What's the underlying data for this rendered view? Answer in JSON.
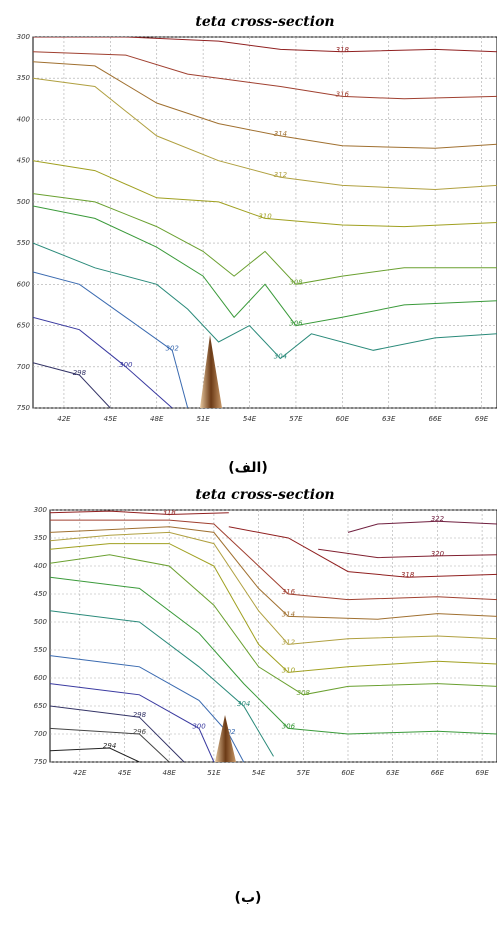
{
  "chart_data": [
    {
      "type": "contour",
      "title": "teta cross-section",
      "caption": "(الف)",
      "grid": true,
      "xlim": [
        40,
        70
      ],
      "ylim": [
        750,
        300
      ],
      "xticks": [
        {
          "value": 42,
          "label": "42E"
        },
        {
          "value": 45,
          "label": "45E"
        },
        {
          "value": 48,
          "label": "48E"
        },
        {
          "value": 51,
          "label": "51E"
        },
        {
          "value": 54,
          "label": "54E"
        },
        {
          "value": 57,
          "label": "57E"
        },
        {
          "value": 60,
          "label": "60E"
        },
        {
          "value": 63,
          "label": "63E"
        },
        {
          "value": 66,
          "label": "66E"
        },
        {
          "value": 69,
          "label": "69E"
        }
      ],
      "yticks": [
        300,
        350,
        400,
        450,
        500,
        550,
        600,
        650,
        700,
        750
      ],
      "contours": [
        {
          "level": 318,
          "color": "#902020",
          "x": [
            40,
            46,
            52,
            56,
            60,
            66,
            70
          ],
          "y": [
            300,
            300,
            305,
            315,
            318,
            315,
            318
          ]
        },
        {
          "level": 316,
          "color": "#a04030",
          "x": [
            40,
            46,
            50,
            56,
            60,
            64,
            70
          ],
          "y": [
            318,
            322,
            345,
            360,
            372,
            375,
            372
          ]
        },
        {
          "level": 314,
          "color": "#a07030",
          "x": [
            40,
            44,
            48,
            52,
            56,
            60,
            66,
            70
          ],
          "y": [
            330,
            335,
            380,
            405,
            420,
            432,
            435,
            430
          ]
        },
        {
          "level": 312,
          "color": "#b0a040",
          "x": [
            40,
            44,
            48,
            52,
            56,
            60,
            66,
            70
          ],
          "y": [
            350,
            360,
            420,
            450,
            470,
            480,
            485,
            480
          ]
        },
        {
          "level": 310,
          "color": "#a0a020",
          "x": [
            40,
            44,
            48,
            52,
            55,
            60,
            64,
            70
          ],
          "y": [
            450,
            462,
            495,
            500,
            520,
            528,
            530,
            525
          ]
        },
        {
          "level": 308,
          "color": "#6aa030",
          "x": [
            40,
            44,
            48,
            51,
            53,
            55,
            57,
            60,
            64,
            70
          ],
          "y": [
            490,
            500,
            530,
            560,
            590,
            560,
            600,
            590,
            580,
            580
          ]
        },
        {
          "level": 306,
          "color": "#3a9a3a",
          "x": [
            40,
            44,
            48,
            51,
            53,
            55,
            57,
            60,
            64,
            70
          ],
          "y": [
            505,
            520,
            555,
            590,
            640,
            600,
            650,
            640,
            625,
            620
          ]
        },
        {
          "level": 304,
          "color": "#2a8a7a",
          "x": [
            40,
            44,
            48,
            50,
            52,
            54,
            56,
            58,
            62,
            66,
            70
          ],
          "y": [
            550,
            580,
            600,
            630,
            670,
            650,
            690,
            660,
            680,
            665,
            660
          ]
        },
        {
          "level": 302,
          "color": "#3a6ab0",
          "x": [
            40,
            43,
            46,
            49,
            50
          ],
          "y": [
            585,
            600,
            640,
            680,
            750
          ]
        },
        {
          "level": 300,
          "color": "#3a3aa0",
          "x": [
            40,
            43,
            46,
            49
          ],
          "y": [
            640,
            655,
            700,
            750
          ]
        },
        {
          "level": 298,
          "color": "#333366",
          "x": [
            40,
            43,
            45
          ],
          "y": [
            695,
            710,
            750
          ]
        }
      ]
    },
    {
      "type": "contour",
      "title": "teta cross-section",
      "caption": "(ب)",
      "grid": true,
      "xlim": [
        40,
        70
      ],
      "ylim": [
        750,
        300
      ],
      "xticks": [
        {
          "value": 42,
          "label": "42E"
        },
        {
          "value": 45,
          "label": "45E"
        },
        {
          "value": 48,
          "label": "48E"
        },
        {
          "value": 51,
          "label": "51E"
        },
        {
          "value": 54,
          "label": "54E"
        },
        {
          "value": 57,
          "label": "57E"
        },
        {
          "value": 60,
          "label": "60E"
        },
        {
          "value": 63,
          "label": "63E"
        },
        {
          "value": 66,
          "label": "66E"
        },
        {
          "value": 69,
          "label": "69E"
        }
      ],
      "yticks": [
        300,
        350,
        400,
        450,
        500,
        550,
        600,
        650,
        700,
        750
      ],
      "contours": [
        {
          "level": 318,
          "color": "#902020",
          "x": [
            40,
            44,
            48,
            52
          ],
          "y": [
            305,
            302,
            308,
            305
          ]
        },
        {
          "level": 322,
          "color": "#702040",
          "x": [
            60,
            62,
            66,
            70
          ],
          "y": [
            340,
            325,
            320,
            325
          ]
        },
        {
          "level": 320,
          "color": "#802030",
          "x": [
            58,
            62,
            66,
            70
          ],
          "y": [
            370,
            385,
            382,
            380
          ]
        },
        {
          "level": 318,
          "color": "#902020",
          "x": [
            52,
            56,
            60,
            64,
            70
          ],
          "y": [
            330,
            350,
            410,
            420,
            415
          ]
        },
        {
          "level": 316,
          "color": "#a04030",
          "x": [
            40,
            44,
            48,
            51,
            54,
            56,
            60,
            66,
            70
          ],
          "y": [
            318,
            318,
            318,
            325,
            400,
            450,
            460,
            455,
            460
          ]
        },
        {
          "level": 314,
          "color": "#a07030",
          "x": [
            40,
            44,
            48,
            51,
            54,
            56,
            62,
            66,
            70
          ],
          "y": [
            340,
            335,
            330,
            340,
            440,
            490,
            495,
            485,
            490
          ]
        },
        {
          "level": 312,
          "color": "#b0a040",
          "x": [
            40,
            44,
            48,
            51,
            54,
            56,
            60,
            66,
            70
          ],
          "y": [
            355,
            345,
            340,
            360,
            480,
            540,
            530,
            525,
            530
          ]
        },
        {
          "level": 310,
          "color": "#a0a020",
          "x": [
            40,
            44,
            48,
            51,
            54,
            56,
            60,
            66,
            70
          ],
          "y": [
            370,
            360,
            360,
            400,
            540,
            590,
            580,
            570,
            575
          ]
        },
        {
          "level": 308,
          "color": "#6aa030",
          "x": [
            40,
            44,
            48,
            51,
            54,
            57,
            60,
            66,
            70
          ],
          "y": [
            395,
            380,
            400,
            470,
            580,
            630,
            615,
            610,
            615
          ]
        },
        {
          "level": 306,
          "color": "#3a9a3a",
          "x": [
            40,
            46,
            50,
            53,
            56,
            60,
            66,
            70
          ],
          "y": [
            420,
            440,
            520,
            610,
            690,
            700,
            695,
            700
          ]
        },
        {
          "level": 304,
          "color": "#2a8a7a",
          "x": [
            40,
            46,
            50,
            53,
            55
          ],
          "y": [
            480,
            500,
            580,
            650,
            740
          ]
        },
        {
          "level": 302,
          "color": "#3a6ab0",
          "x": [
            40,
            46,
            50,
            52,
            53
          ],
          "y": [
            560,
            580,
            640,
            700,
            750
          ]
        },
        {
          "level": 300,
          "color": "#3a3aa0",
          "x": [
            40,
            46,
            50,
            51
          ],
          "y": [
            610,
            630,
            690,
            750
          ]
        },
        {
          "level": 298,
          "color": "#333366",
          "x": [
            40,
            46,
            49
          ],
          "y": [
            650,
            670,
            750
          ]
        },
        {
          "level": 296,
          "color": "#444444",
          "x": [
            40,
            46,
            48
          ],
          "y": [
            690,
            700,
            750
          ]
        },
        {
          "level": 294,
          "color": "#222222",
          "x": [
            40,
            44,
            46
          ],
          "y": [
            730,
            725,
            750
          ]
        }
      ]
    }
  ]
}
